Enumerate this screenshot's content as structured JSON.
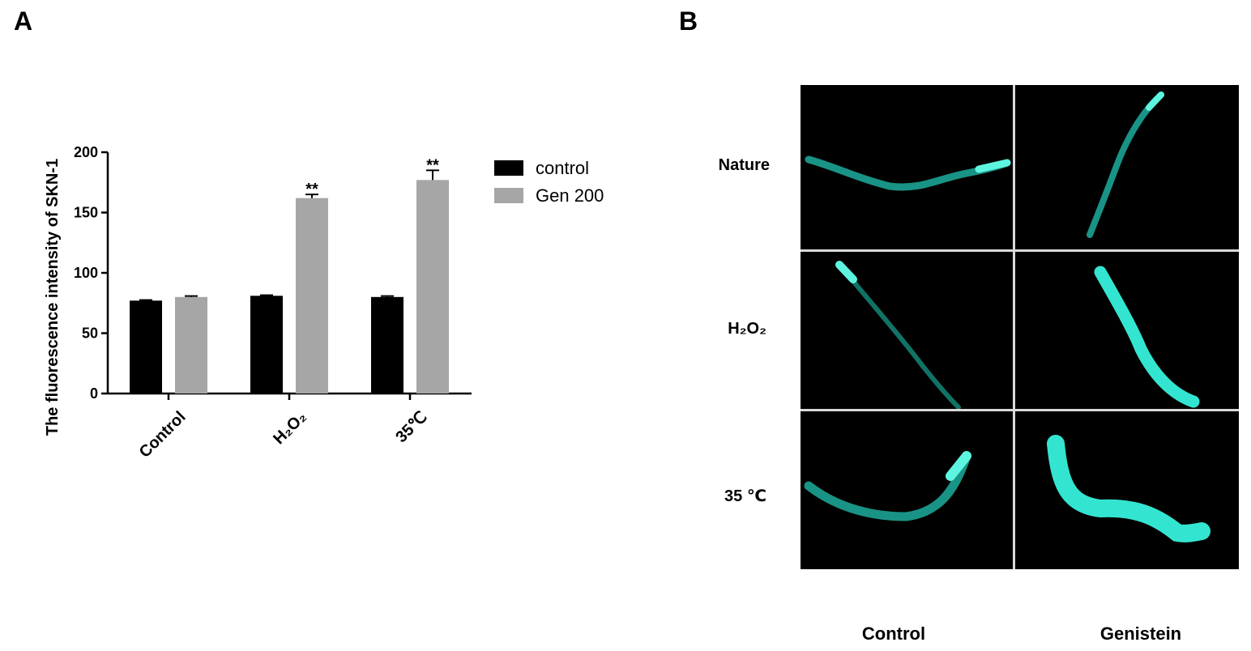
{
  "panels": {
    "a_label": "A",
    "b_label": "B"
  },
  "chart_data": {
    "type": "bar",
    "categories": [
      "Control",
      "H₂O₂",
      "35℃"
    ],
    "series": [
      {
        "name": "control",
        "values": [
          77,
          81,
          80
        ],
        "errors": [
          0.5,
          0.5,
          0.8
        ],
        "color": "#000000"
      },
      {
        "name": "Gen 200",
        "values": [
          80,
          162,
          177
        ],
        "errors": [
          0.8,
          3,
          8
        ],
        "color": "#a6a6a6"
      }
    ],
    "significance": [
      {
        "category": "H₂O₂",
        "series": "Gen 200",
        "label": "**"
      },
      {
        "category": "35℃",
        "series": "Gen 200",
        "label": "**"
      }
    ],
    "ylabel": "The fluorescence intensity of SKN-1",
    "xlabel": "",
    "ylim": [
      0,
      200
    ],
    "yticks": [
      0,
      50,
      100,
      150,
      200
    ],
    "legend_position": "top-right"
  },
  "image_grid": {
    "rows": [
      "Nature",
      "H₂O₂",
      "35 ℃"
    ],
    "columns": [
      "Control",
      "Genistein"
    ],
    "fluorescence_color": "#33e5d0"
  }
}
